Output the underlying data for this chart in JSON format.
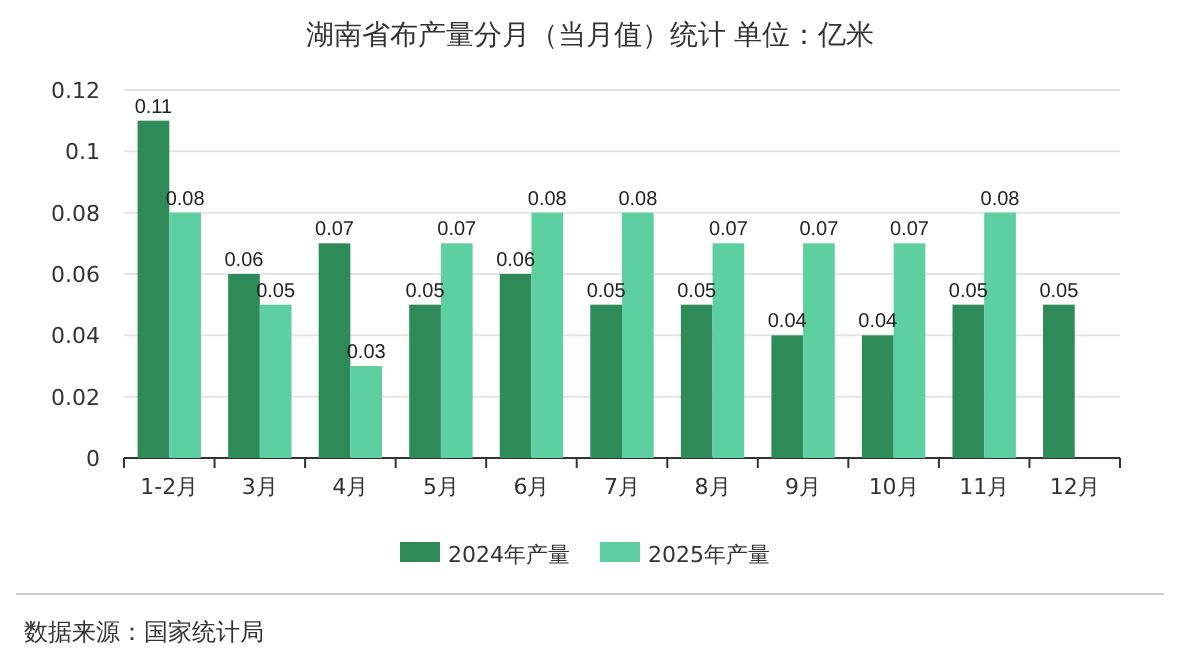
{
  "chart_data": {
    "type": "bar",
    "title": "湖南省布产量分月（当月值）统计 单位：亿米",
    "categories": [
      "1-2月",
      "3月",
      "4月",
      "5月",
      "6月",
      "7月",
      "8月",
      "9月",
      "10月",
      "11月",
      "12月"
    ],
    "series": [
      {
        "name": "2024年产量",
        "color": "#2e8b57",
        "values": [
          0.11,
          0.06,
          0.07,
          0.05,
          0.06,
          0.05,
          0.05,
          0.04,
          0.04,
          0.05,
          0.05
        ]
      },
      {
        "name": "2025年产量",
        "color": "#5dcfa1",
        "values": [
          0.08,
          0.05,
          0.03,
          0.07,
          0.08,
          0.08,
          0.07,
          0.07,
          0.07,
          0.08,
          null
        ]
      }
    ],
    "ylim": [
      0,
      0.12
    ],
    "yticks": [
      0,
      0.02,
      0.04,
      0.06,
      0.08,
      0.1,
      0.12
    ],
    "grid": "y",
    "legend": "bottom",
    "data_labels": true,
    "annotations": [
      "数据来源：国家统计局"
    ]
  }
}
